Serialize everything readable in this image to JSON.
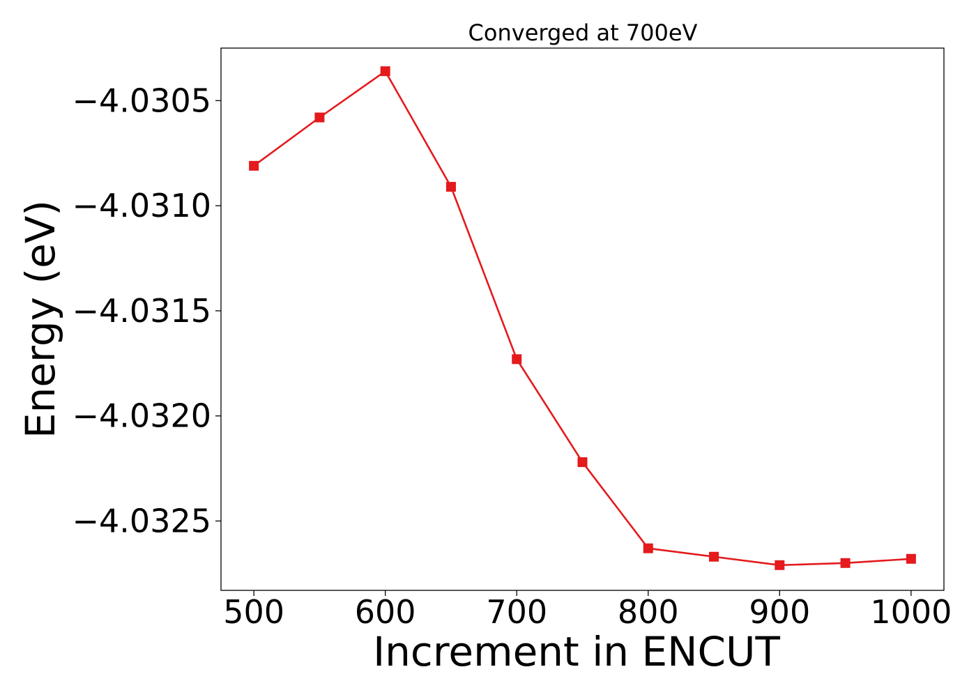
{
  "chart_data": {
    "type": "line",
    "title": "Converged at 700eV",
    "xlabel": "Increment in ENCUT",
    "ylabel": "Energy (eV)",
    "xlim": [
      475,
      1025
    ],
    "ylim": [
      -4.03283,
      -4.03025
    ],
    "x_ticks": [
      500,
      600,
      700,
      800,
      900,
      1000
    ],
    "x_tick_labels": [
      "500",
      "600",
      "700",
      "800",
      "900",
      "1000"
    ],
    "y_ticks": [
      -4.0305,
      -4.031,
      -4.0315,
      -4.032,
      -4.0325
    ],
    "y_tick_labels": [
      "−4.0305",
      "−4.0310",
      "−4.0315",
      "−4.0320",
      "−4.0325"
    ],
    "grid": false,
    "marker": "square",
    "color": "#e41a1c",
    "series": [
      {
        "x": [
          500,
          550,
          600,
          650,
          700,
          750,
          800,
          850,
          900,
          950,
          1000
        ],
        "y": [
          -4.03081,
          -4.03058,
          -4.03036,
          -4.03091,
          -4.03173,
          -4.03222,
          -4.03263,
          -4.03267,
          -4.03271,
          -4.0327,
          -4.03268
        ]
      }
    ]
  }
}
